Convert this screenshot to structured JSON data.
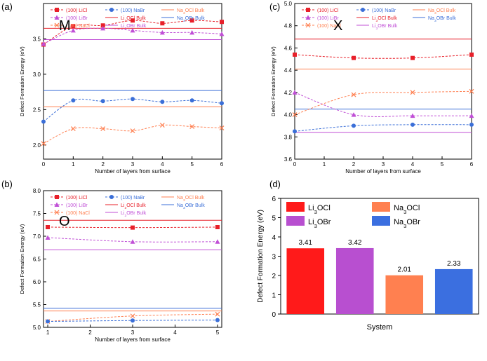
{
  "chart_data": [
    {
      "panel_label": "(a)",
      "inset_label": "M",
      "type": "line",
      "xlabel": "Number of layers from surface",
      "ylabel": "Defect Formation Energy (eV)",
      "xlim": [
        0,
        6
      ],
      "ylim": [
        1.8,
        4.0
      ],
      "xticks": [
        0,
        1,
        2,
        3,
        4,
        5,
        6
      ],
      "yticks": [
        2.0,
        2.5,
        3.0,
        3.5
      ],
      "legend_position": "top",
      "series": [
        {
          "name": "(100) LiCl",
          "style": "surface",
          "marker": "square",
          "color": "#e8202a",
          "x": [
            0,
            1,
            2,
            3,
            4,
            5,
            6
          ],
          "values": [
            3.42,
            3.68,
            3.69,
            3.76,
            3.72,
            3.76,
            3.74
          ]
        },
        {
          "name": "(100) LiBr",
          "style": "surface",
          "marker": "triangle",
          "color": "#c04fd6",
          "x": [
            0,
            1,
            2,
            3,
            4,
            5,
            6
          ],
          "values": [
            3.43,
            3.62,
            3.65,
            3.62,
            3.59,
            3.59,
            3.57
          ]
        },
        {
          "name": "(100) NaCl",
          "style": "surface",
          "marker": "cross",
          "color": "#ff7f50",
          "x": [
            0,
            1,
            2,
            3,
            4,
            5,
            6
          ],
          "values": [
            2.02,
            2.23,
            2.23,
            2.2,
            2.28,
            2.26,
            2.24
          ]
        },
        {
          "name": "(100) NaBr",
          "style": "surface",
          "marker": "circle",
          "color": "#3b6fd8",
          "x": [
            0,
            1,
            2,
            3,
            4,
            5,
            6
          ],
          "values": [
            2.33,
            2.63,
            2.62,
            2.65,
            2.61,
            2.63,
            2.59
          ]
        },
        {
          "name": "Li3OCl Bulk",
          "style": "bulk",
          "color": "#e8202a",
          "value": 3.65
        },
        {
          "name": "Li3OBr Bulk",
          "style": "bulk",
          "color": "#c04fd6",
          "value": 3.49
        },
        {
          "name": "Na3OCl Bulk",
          "style": "bulk",
          "color": "#ff7f50",
          "value": 2.54
        },
        {
          "name": "Na3OBr Bulk",
          "style": "bulk",
          "color": "#3b6fd8",
          "value": 2.77
        }
      ]
    },
    {
      "panel_label": "(c)",
      "inset_label": "X",
      "type": "line",
      "xlabel": "Number of layers from surface",
      "ylabel": "Defect Formation Energy (eV)",
      "xlim": [
        0,
        6
      ],
      "ylim": [
        3.6,
        5.0
      ],
      "xticks": [
        0,
        1,
        2,
        3,
        4,
        5,
        6
      ],
      "yticks": [
        3.6,
        3.8,
        4.0,
        4.2,
        4.4,
        4.6,
        4.8,
        5.0
      ],
      "legend_position": "top",
      "series": [
        {
          "name": "(100) LiCl",
          "style": "surface",
          "marker": "square",
          "color": "#e8202a",
          "x": [
            0,
            2,
            4,
            6
          ],
          "values": [
            4.54,
            4.51,
            4.51,
            4.54
          ]
        },
        {
          "name": "(100) LiBr",
          "style": "surface",
          "marker": "triangle",
          "color": "#c04fd6",
          "x": [
            0,
            2,
            4,
            6
          ],
          "values": [
            4.2,
            4.0,
            3.99,
            3.99
          ]
        },
        {
          "name": "(100) NaCl",
          "style": "surface",
          "marker": "cross",
          "color": "#ff7f50",
          "x": [
            0,
            2,
            4,
            6
          ],
          "values": [
            4.0,
            4.18,
            4.2,
            4.21
          ]
        },
        {
          "name": "(100) NaBr",
          "style": "surface",
          "marker": "circle",
          "color": "#3b6fd8",
          "x": [
            0,
            2,
            4,
            6
          ],
          "values": [
            3.85,
            3.9,
            3.91,
            3.91
          ]
        },
        {
          "name": "Li3OCl Bulk",
          "style": "bulk",
          "color": "#e8202a",
          "value": 4.68
        },
        {
          "name": "Li3OBr Bulk",
          "style": "bulk",
          "color": "#c04fd6",
          "value": 3.84
        },
        {
          "name": "Na3OCl Bulk",
          "style": "bulk",
          "color": "#ff7f50",
          "value": 4.41
        },
        {
          "name": "Na3OBr Bulk",
          "style": "bulk",
          "color": "#3b6fd8",
          "value": 4.05
        }
      ]
    },
    {
      "panel_label": "(b)",
      "inset_label": "O",
      "type": "line",
      "xlabel": "Number of layers from surface",
      "ylabel": "Defect Formation Energy (eV)",
      "xlim": [
        0.9,
        5.1
      ],
      "ylim": [
        5.0,
        8.0
      ],
      "xticks": [
        1,
        2,
        3,
        4,
        5
      ],
      "yticks": [
        5.0,
        5.5,
        6.0,
        6.5,
        7.0,
        7.5,
        8.0
      ],
      "legend_position": "top",
      "series": [
        {
          "name": "(100) LiCl",
          "style": "surface",
          "marker": "square",
          "color": "#e8202a",
          "x": [
            1,
            3,
            5
          ],
          "values": [
            7.2,
            7.19,
            7.2
          ]
        },
        {
          "name": "(100) LiBr",
          "style": "surface",
          "marker": "triangle",
          "color": "#c04fd6",
          "x": [
            1,
            3,
            5
          ],
          "values": [
            6.97,
            6.88,
            6.88
          ]
        },
        {
          "name": "(100) NaCl",
          "style": "surface",
          "marker": "cross",
          "color": "#ff7f50",
          "x": [
            1,
            3,
            5
          ],
          "values": [
            5.13,
            5.25,
            5.29
          ]
        },
        {
          "name": "(100) NaBr",
          "style": "surface",
          "marker": "circle",
          "color": "#3b6fd8",
          "x": [
            1,
            3,
            5
          ],
          "values": [
            5.13,
            5.15,
            5.16
          ]
        },
        {
          "name": "Li3OCl Bulk",
          "style": "bulk",
          "color": "#e8202a",
          "value": 7.35
        },
        {
          "name": "Li3OBr Bulk",
          "style": "bulk",
          "color": "#c04fd6",
          "value": 6.7
        },
        {
          "name": "Na3OCl Bulk",
          "style": "bulk",
          "color": "#ff7f50",
          "value": 5.36
        },
        {
          "name": "Na3OBr Bulk",
          "style": "bulk",
          "color": "#3b6fd8",
          "value": 5.42
        }
      ]
    },
    {
      "panel_label": "(d)",
      "type": "bar",
      "xlabel": "System",
      "ylabel": "Defect Formation Energy (eV)",
      "ylim": [
        0,
        6
      ],
      "yticks": [
        0,
        1,
        2,
        3,
        4,
        5,
        6
      ],
      "legend_position": "top",
      "categories": [
        "Li3OCl",
        "Li3OBr",
        "Na3OCl",
        "Na3OBr"
      ],
      "values": [
        3.41,
        3.42,
        2.01,
        2.33
      ],
      "value_labels": [
        "3.41",
        "3.42",
        "2.01",
        "2.33"
      ],
      "colors": [
        "#ff1a1a",
        "#b84fd0",
        "#ff8050",
        "#3b6fe0"
      ]
    }
  ]
}
